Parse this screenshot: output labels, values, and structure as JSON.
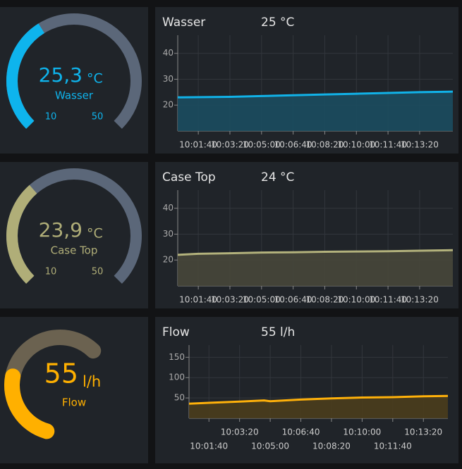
{
  "chart_data": [
    {
      "type": "gauge",
      "label": "Wasser",
      "values": [
        25.3
      ],
      "value_labels": [
        "25,3"
      ],
      "unit": "°C",
      "color": "#0eb4ed",
      "track_color": "#5b6779",
      "cap": "butt",
      "ylim": [
        10,
        50
      ],
      "yticks": [
        10,
        50
      ]
    },
    {
      "type": "area",
      "title": "Wasser",
      "current": "25 °C",
      "color": "#11b2e8",
      "fill": "#1b4c5f",
      "x": [
        "10:00:35",
        "10:03:20",
        "10:05:00",
        "10:06:40",
        "10:08:20",
        "10:10:00",
        "10:11:40",
        "10:13:20",
        "10:15:05"
      ],
      "values": [
        23.0,
        23.2,
        23.5,
        23.8,
        24.1,
        24.4,
        24.7,
        25.0,
        25.2
      ],
      "xlim": [
        "10:00:35",
        "10:15:05"
      ],
      "xticks": [
        "10:01:40",
        "10:03:20",
        "10:05:00",
        "10:06:40",
        "10:08:20",
        "10:10:00",
        "10:11:40",
        "10:13:20"
      ],
      "ylim": [
        10,
        47
      ],
      "yticks": [
        20,
        30,
        40
      ],
      "grid": true,
      "stagger_xticks": false
    },
    {
      "type": "gauge",
      "label": "Case Top",
      "values": [
        23.9
      ],
      "value_labels": [
        "23,9"
      ],
      "unit": "°C",
      "color": "#b0ae78",
      "track_color": "#5b6779",
      "cap": "butt",
      "ylim": [
        10,
        50
      ],
      "yticks": [
        10,
        50
      ]
    },
    {
      "type": "area",
      "title": "Case Top",
      "current": "24 °C",
      "color": "#b3b27c",
      "fill": "#47473a",
      "x": [
        "10:00:35",
        "10:01:40",
        "10:03:20",
        "10:05:00",
        "10:06:40",
        "10:08:20",
        "10:10:00",
        "10:11:40",
        "10:13:20",
        "10:15:05"
      ],
      "values": [
        22.0,
        22.4,
        22.6,
        22.9,
        23.0,
        23.2,
        23.3,
        23.4,
        23.6,
        23.8
      ],
      "xlim": [
        "10:00:35",
        "10:15:05"
      ],
      "xticks": [
        "10:01:40",
        "10:03:20",
        "10:05:00",
        "10:06:40",
        "10:08:20",
        "10:10:00",
        "10:11:40",
        "10:13:20"
      ],
      "ylim": [
        10,
        47
      ],
      "yticks": [
        20,
        30,
        40
      ],
      "grid": true,
      "stagger_xticks": false
    },
    {
      "type": "gauge",
      "label": "Flow",
      "values": [
        55
      ],
      "unit": "l/h",
      "color": "#ffb000",
      "track_color": "#6b6250",
      "cap": "round",
      "ylim": [
        0,
        135
      ]
    },
    {
      "type": "area",
      "title": "Flow",
      "current": "55 l/h",
      "color": "#ffb10a",
      "fill": "#4a3d1c",
      "x": [
        "10:00:35",
        "10:01:40",
        "10:03:20",
        "10:04:40",
        "10:05:00",
        "10:06:40",
        "10:08:20",
        "10:10:00",
        "10:11:40",
        "10:13:20",
        "10:14:40"
      ],
      "values": [
        36,
        38,
        41,
        44,
        42,
        46,
        49,
        51,
        52,
        54,
        55
      ],
      "xlim": [
        "10:00:35",
        "10:14:40"
      ],
      "xticks": [
        "10:01:40",
        "10:03:20",
        "10:05:00",
        "10:06:40",
        "10:08:20",
        "10:10:00",
        "10:11:40",
        "10:13:20"
      ],
      "ylim": [
        0,
        180
      ],
      "yticks": [
        50,
        100,
        150
      ],
      "grid": true,
      "stagger_xticks": true
    }
  ]
}
